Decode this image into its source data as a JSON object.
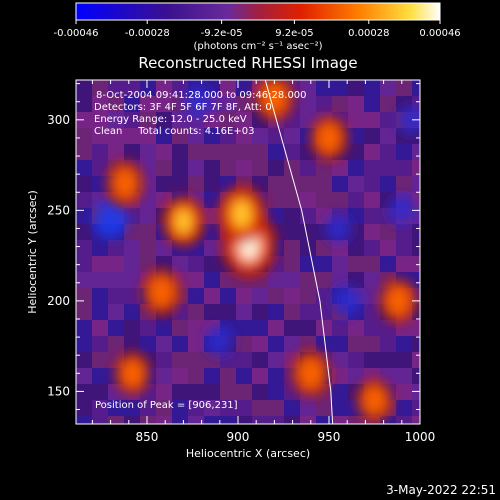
{
  "colorbar": {
    "tick_labels": [
      "-0.00046",
      "-0.00028",
      "-9.2e-05",
      "9.2e-05",
      "0.00028",
      "0.00046"
    ],
    "units": "(photons cm⁻² s⁻¹ asec⁻²)",
    "range": [
      -0.00046,
      0.00046
    ],
    "colors": [
      "#0000ff",
      "#4b0082",
      "#7a2aa8",
      "#d42000",
      "#ff7800",
      "#ffff40",
      "#ffffff"
    ]
  },
  "image": {
    "title": "Reconstructed RHESSI Image",
    "info_lines": [
      "8-Oct-2004 09:41:28.000 to 09:46:28.000",
      "Detectors: 3F 4F 5F 6F 7F 8F, Att: 0",
      "Energy Range: 12.0 - 25.0 keV",
      "Clean     Total counts: 4.16E+03"
    ],
    "peak_label": "Position of Peak = [906,231]",
    "peak": [
      906,
      231
    ],
    "xlabel": "Heliocentric X (arcsec)",
    "ylabel": "Heliocentric Y (arcsec)",
    "xlim": [
      811,
      1000
    ],
    "ylim": [
      132,
      322
    ],
    "x_ticks": [
      850,
      900,
      950,
      1000
    ],
    "y_ticks": [
      150,
      200,
      250,
      300
    ],
    "limb_curve": [
      [
        915,
        322
      ],
      [
        935,
        250
      ],
      [
        945,
        200
      ],
      [
        951,
        150
      ],
      [
        952,
        132
      ]
    ],
    "hot_spots": [
      {
        "x": 906,
        "y": 231,
        "level": 1.0
      },
      {
        "x": 902,
        "y": 248,
        "level": 0.8
      },
      {
        "x": 870,
        "y": 244,
        "level": 0.65
      },
      {
        "x": 858,
        "y": 205,
        "level": 0.55
      },
      {
        "x": 838,
        "y": 265,
        "level": 0.5
      },
      {
        "x": 920,
        "y": 312,
        "level": 0.55
      },
      {
        "x": 842,
        "y": 160,
        "level": 0.45
      },
      {
        "x": 950,
        "y": 290,
        "level": 0.5
      },
      {
        "x": 988,
        "y": 200,
        "level": 0.5
      },
      {
        "x": 940,
        "y": 160,
        "level": 0.55
      },
      {
        "x": 975,
        "y": 145,
        "level": 0.45
      }
    ],
    "cold_spots": [
      {
        "x": 830,
        "y": 245,
        "level": 0.8
      },
      {
        "x": 878,
        "y": 310,
        "level": 0.6
      },
      {
        "x": 955,
        "y": 240,
        "level": 0.5
      },
      {
        "x": 960,
        "y": 200,
        "level": 0.6
      },
      {
        "x": 890,
        "y": 178,
        "level": 0.55
      },
      {
        "x": 995,
        "y": 300,
        "level": 0.5
      },
      {
        "x": 990,
        "y": 250,
        "level": 0.5
      }
    ]
  },
  "timestamp": "3-May-2022 22:51"
}
